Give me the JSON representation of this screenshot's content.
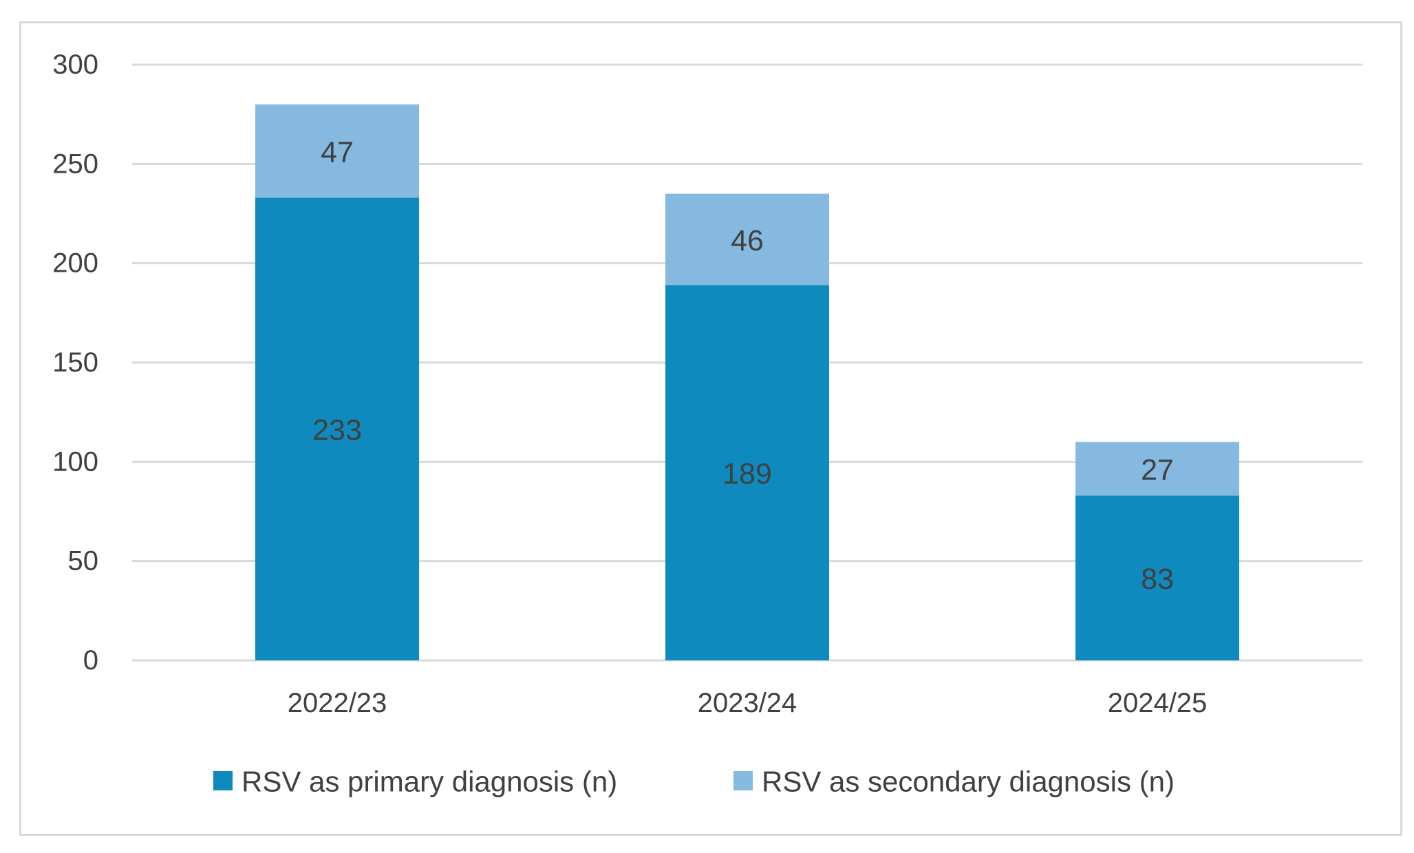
{
  "chart_data": {
    "type": "bar",
    "stacked": true,
    "categories": [
      "2022/23",
      "2023/24",
      "2024/25"
    ],
    "series": [
      {
        "name": "RSV as primary diagnosis (n)",
        "values": [
          233,
          189,
          83
        ],
        "color": "#0f8abe"
      },
      {
        "name": "RSV as secondary diagnosis (n)",
        "values": [
          47,
          46,
          27
        ],
        "color": "#85b9e0"
      }
    ],
    "title": "",
    "xlabel": "",
    "ylabel": "",
    "ylim": [
      0,
      300
    ],
    "yticks": [
      0,
      50,
      100,
      150,
      200,
      250,
      300
    ],
    "grid": true,
    "legend_position": "bottom",
    "data_labels": true,
    "gridline_color": "#d9d9d9",
    "text_color": "#404040"
  }
}
